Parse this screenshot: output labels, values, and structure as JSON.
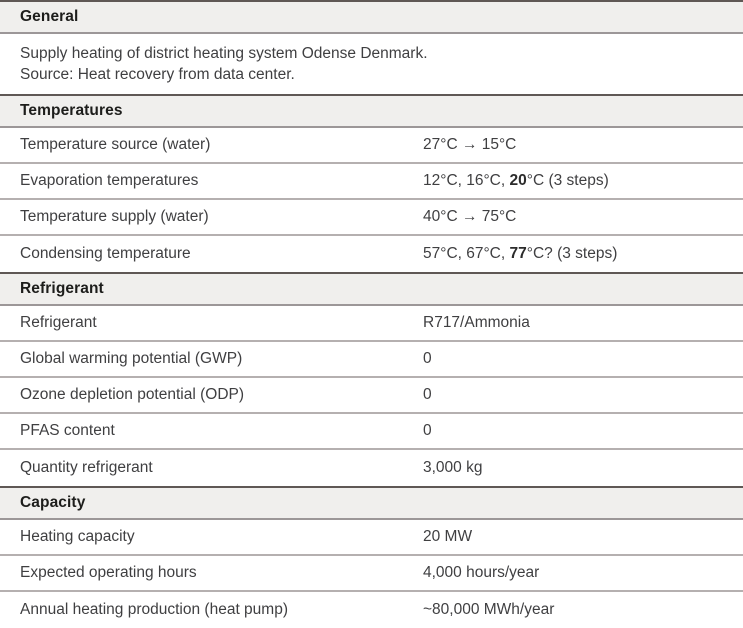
{
  "table": {
    "sections": [
      {
        "title": "General",
        "lines": [
          "Supply heating of district heating system Odense Denmark.",
          "Source: Heat recovery from data center."
        ]
      },
      {
        "title": "Temperatures",
        "rows": [
          {
            "label": "Temperature source (water)",
            "value_parts": [
              {
                "t": "27°C → 15°C",
                "bold": false
              }
            ]
          },
          {
            "label": "Evaporation temperatures",
            "value_parts": [
              {
                "t": "12°C, 16°C, ",
                "bold": false
              },
              {
                "t": "20",
                "bold": true
              },
              {
                "t": "°C (3 steps)",
                "bold": false
              }
            ]
          },
          {
            "label": "Temperature supply (water)",
            "value_parts": [
              {
                "t": "40°C → 75°C",
                "bold": false
              }
            ]
          },
          {
            "label": "Condensing temperature",
            "value_parts": [
              {
                "t": "57°C, 67°C, ",
                "bold": false
              },
              {
                "t": "77",
                "bold": true
              },
              {
                "t": "°C? (3 steps)",
                "bold": false
              }
            ]
          }
        ]
      },
      {
        "title": "Refrigerant",
        "rows": [
          {
            "label": "Refrigerant",
            "value_parts": [
              {
                "t": "R717/Ammonia",
                "bold": false
              }
            ]
          },
          {
            "label": "Global warming potential (GWP)",
            "value_parts": [
              {
                "t": "0",
                "bold": false
              }
            ]
          },
          {
            "label": "Ozone depletion potential (ODP)",
            "value_parts": [
              {
                "t": "0",
                "bold": false
              }
            ]
          },
          {
            "label": "PFAS content",
            "value_parts": [
              {
                "t": "0",
                "bold": false
              }
            ]
          },
          {
            "label": "Quantity refrigerant",
            "value_parts": [
              {
                "t": "3,000 kg",
                "bold": false
              }
            ]
          }
        ]
      },
      {
        "title": "Capacity",
        "rows": [
          {
            "label": "Heating capacity",
            "value_parts": [
              {
                "t": "20 MW",
                "bold": false
              }
            ]
          },
          {
            "label": "Expected operating hours",
            "value_parts": [
              {
                "t": "4,000 hours/year",
                "bold": false
              }
            ]
          },
          {
            "label": "Annual heating production (heat pump)",
            "value_parts": [
              {
                "t": "~80,000 MWh/year",
                "bold": false
              }
            ]
          }
        ]
      }
    ]
  },
  "colors": {
    "header_background": "#f0efed",
    "header_top_border": "#5f5855",
    "header_bottom_border": "#9c9798",
    "row_divider": "#b5b0b0",
    "header_text": "#1d1d1b",
    "body_text": "#3f3f41"
  }
}
